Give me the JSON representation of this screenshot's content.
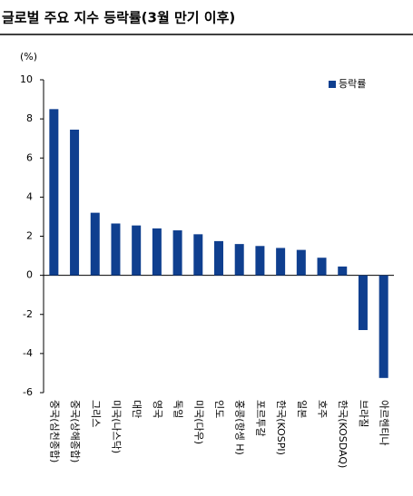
{
  "chart_data": {
    "type": "bar",
    "title": "글로벌 주요 지수 등락률(3월 만기 이후)",
    "y_label": "(%)",
    "categories": [
      "중국(심천종합)",
      "중국(상해종합)",
      "그리스",
      "미국(나스닥)",
      "대만",
      "영국",
      "독일",
      "미국(다우)",
      "인도",
      "홍콩(항셍 H)",
      "포르투갈",
      "한국(KOSPI)",
      "일본",
      "호주",
      "한국(KOSDAQ)",
      "브라질",
      "아르헨티나"
    ],
    "series": [
      {
        "name": "등락률",
        "color": "#0f3f8f",
        "values": [
          8.5,
          7.45,
          3.2,
          2.65,
          2.55,
          2.4,
          2.3,
          2.1,
          1.75,
          1.6,
          1.5,
          1.4,
          1.3,
          0.9,
          0.45,
          -2.8,
          -5.25
        ]
      }
    ],
    "ylim": [
      -6,
      10
    ],
    "yticks": [
      -6,
      -4,
      -2,
      0,
      2,
      4,
      6,
      8,
      10
    ],
    "grid": false,
    "legend": "top-right"
  }
}
